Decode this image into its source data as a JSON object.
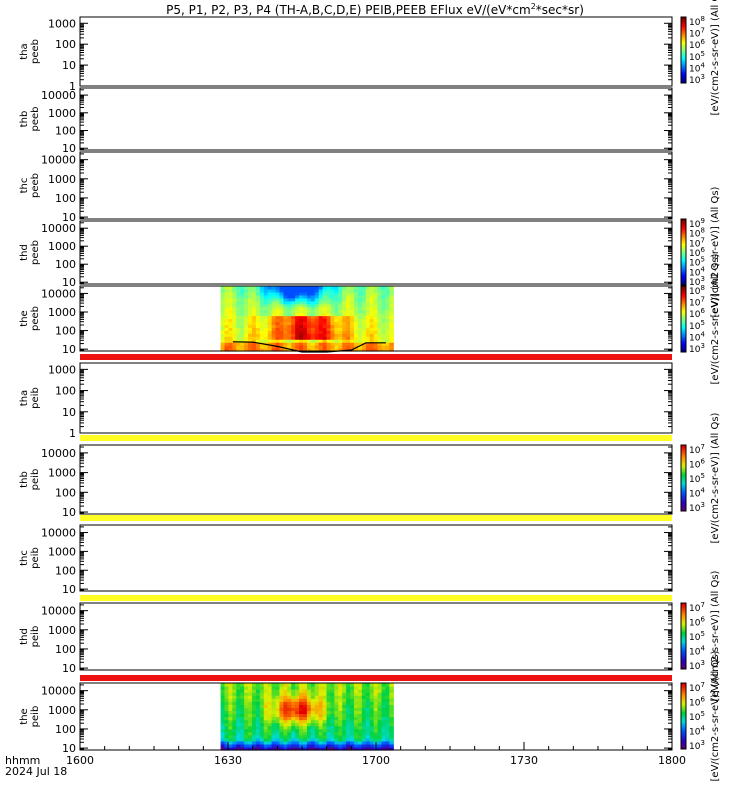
{
  "title": "P5, P1, P2, P3, P4 (TH-A,B,C,D,E) PEIB,PEEB EFlux eV/(eV*cm",
  "title_sup": "2",
  "title_tail": "*sec*sr)",
  "colors": {
    "flag_red": "#ee1111",
    "flag_yellow": "#ffff22",
    "axis": "#000000"
  },
  "chart_data": {
    "type": "heatmap",
    "x_axis": {
      "label_row1": "hhmm",
      "label_row2": "2024 Jul 18",
      "ticks": [
        "1600",
        "1630",
        "1700",
        "1730",
        "1800"
      ],
      "range_min": [
        0,
        120
      ]
    },
    "panels": [
      {
        "label1": "tha",
        "label2": "peeb",
        "yticks": [
          "1000",
          "100",
          "10",
          "1"
        ],
        "ylog": [
          0,
          3.3
        ],
        "flag_after": null,
        "colorbar": {
          "sups": [
            "8",
            "7",
            "6",
            "5",
            "4",
            "3"
          ],
          "unit": "[eV/(cm2-s-sr-eV)] (All Qs)"
        },
        "spectrogram": null
      },
      {
        "label1": "thb",
        "label2": "peeb",
        "yticks": [
          "10000",
          "1000",
          "100",
          "10"
        ],
        "ylog": [
          0.9,
          4.4
        ],
        "flag_after": null,
        "colorbar": null,
        "spectrogram": null
      },
      {
        "label1": "thc",
        "label2": "peeb",
        "yticks": [
          "10000",
          "1000",
          "100",
          "10"
        ],
        "ylog": [
          0.9,
          4.4
        ],
        "flag_after": null,
        "colorbar": null,
        "spectrogram": null
      },
      {
        "label1": "thd",
        "label2": "peeb",
        "yticks": [
          "10000",
          "1000",
          "100",
          "10"
        ],
        "ylog": [
          0.9,
          4.4
        ],
        "flag_after": null,
        "colorbar": {
          "sups": [
            "9",
            "8",
            "7",
            "6",
            "5",
            "4",
            "3"
          ],
          "unit": "[eV/(cm2-s-sr-eV)] (All Qs)"
        },
        "spectrogram": null
      },
      {
        "label1": "the",
        "label2": "peeb",
        "yticks": [
          "10000",
          "1000",
          "100",
          "10"
        ],
        "ylog": [
          0.9,
          4.4
        ],
        "flag_after": "red",
        "colorbar": {
          "sups": [
            "8",
            "7",
            "6",
            "5",
            "4",
            "3"
          ],
          "unit": "[eV/(cm2-s-sr-eV)] (All Qs)"
        },
        "spectrogram": {
          "start_min": 28.5,
          "end_min": 63.5,
          "kind": "electron",
          "potential_min": [
            31,
            35,
            40,
            45,
            50,
            55,
            58,
            62
          ],
          "potential_eV": [
            25,
            24,
            14,
            7,
            7,
            9,
            22,
            22
          ]
        }
      },
      {
        "label1": "tha",
        "label2": "peib",
        "yticks": [
          "1000",
          "100",
          "10",
          "1"
        ],
        "ylog": [
          0,
          3.3
        ],
        "flag_after": "yellow",
        "colorbar": null,
        "spectrogram": null
      },
      {
        "label1": "thb",
        "label2": "peib",
        "yticks": [
          "10000",
          "1000",
          "100",
          "10"
        ],
        "ylog": [
          0.9,
          4.4
        ],
        "flag_after": "yellow",
        "colorbar": {
          "sups": [
            "7",
            "6",
            "5",
            "4",
            "3"
          ],
          "unit": "[eV/(cm2-s-sr-eV)] (All Qs)"
        },
        "spectrogram": null
      },
      {
        "label1": "thc",
        "label2": "peib",
        "yticks": [
          "10000",
          "1000",
          "100",
          "10"
        ],
        "ylog": [
          0.9,
          4.4
        ],
        "flag_after": "yellow",
        "colorbar": null,
        "spectrogram": null
      },
      {
        "label1": "thd",
        "label2": "peib",
        "yticks": [
          "10000",
          "1000",
          "100",
          "10"
        ],
        "ylog": [
          0.9,
          4.4
        ],
        "flag_after": "red",
        "colorbar": {
          "sups": [
            "7",
            "6",
            "5",
            "4",
            "3"
          ],
          "unit": "[eV/(cm2-s-sr-eV)] (All Qs)"
        },
        "spectrogram": null
      },
      {
        "label1": "the",
        "label2": "peib",
        "yticks": [
          "10000",
          "1000",
          "100",
          "10"
        ],
        "ylog": [
          0.9,
          4.4
        ],
        "flag_after": null,
        "colorbar": {
          "sups": [
            "7",
            "6",
            "5",
            "4",
            "3"
          ],
          "unit": "[eV/(cm2-s-sr-eV)] (All Qs)"
        },
        "spectrogram": {
          "start_min": 28.5,
          "end_min": 63.5,
          "kind": "ion"
        }
      }
    ],
    "colorbar_base": "10"
  }
}
